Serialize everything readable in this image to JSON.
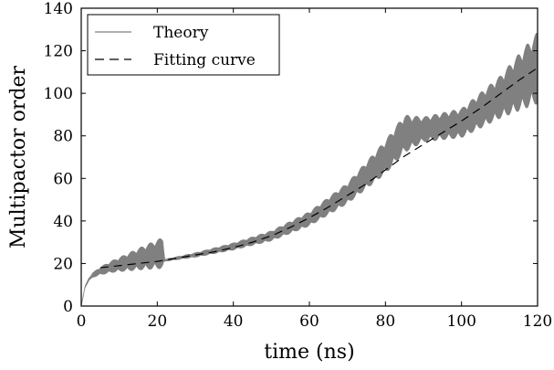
{
  "chart_data": {
    "type": "line",
    "xlabel": "time (ns)",
    "ylabel": "Multipactor order",
    "xlim": [
      0,
      120
    ],
    "ylim": [
      0,
      140
    ],
    "xticks": [
      0,
      20,
      40,
      60,
      80,
      100,
      120
    ],
    "yticks": [
      0,
      20,
      40,
      60,
      80,
      100,
      120,
      140
    ],
    "legend_position": "top-left",
    "series": [
      {
        "name": "Theory",
        "style": "oscillating band",
        "color": "#808080",
        "center": {
          "x": [
            0,
            1,
            2,
            3,
            5,
            8,
            12,
            16,
            21.5,
            22,
            30,
            40,
            50,
            60,
            70,
            80,
            85,
            90,
            100,
            110,
            120
          ],
          "y": [
            0,
            9,
            12.5,
            14.5,
            16.5,
            18.5,
            20.5,
            22.5,
            25,
            21.5,
            24,
            28,
            33,
            41,
            53,
            70,
            81,
            83,
            86,
            98,
            112
          ]
        },
        "halfwidth": {
          "x": [
            0,
            2,
            5,
            10,
            21.5,
            22,
            30,
            40,
            50,
            60,
            70,
            80,
            85,
            90,
            100,
            110,
            120
          ],
          "y": [
            0,
            0.8,
            2,
            3.5,
            7.5,
            0.6,
            1.2,
            1.8,
            2.5,
            3.5,
            5,
            8,
            9,
            6,
            7,
            10,
            17
          ]
        }
      },
      {
        "name": "Fitting curve",
        "style": "dashed",
        "color": "#000000",
        "x": [
          5,
          10,
          15,
          20,
          25,
          30,
          35,
          40,
          45,
          50,
          55,
          60,
          65,
          70,
          75,
          80,
          85,
          90,
          95,
          100,
          105,
          110,
          115,
          120
        ],
        "y": [
          18,
          19,
          20,
          21,
          22.5,
          24,
          25.5,
          27.5,
          30,
          33,
          37,
          41.5,
          46.5,
          52,
          57.5,
          64,
          70.5,
          76,
          81.5,
          87,
          93,
          99.5,
          106,
          112
        ]
      }
    ]
  }
}
